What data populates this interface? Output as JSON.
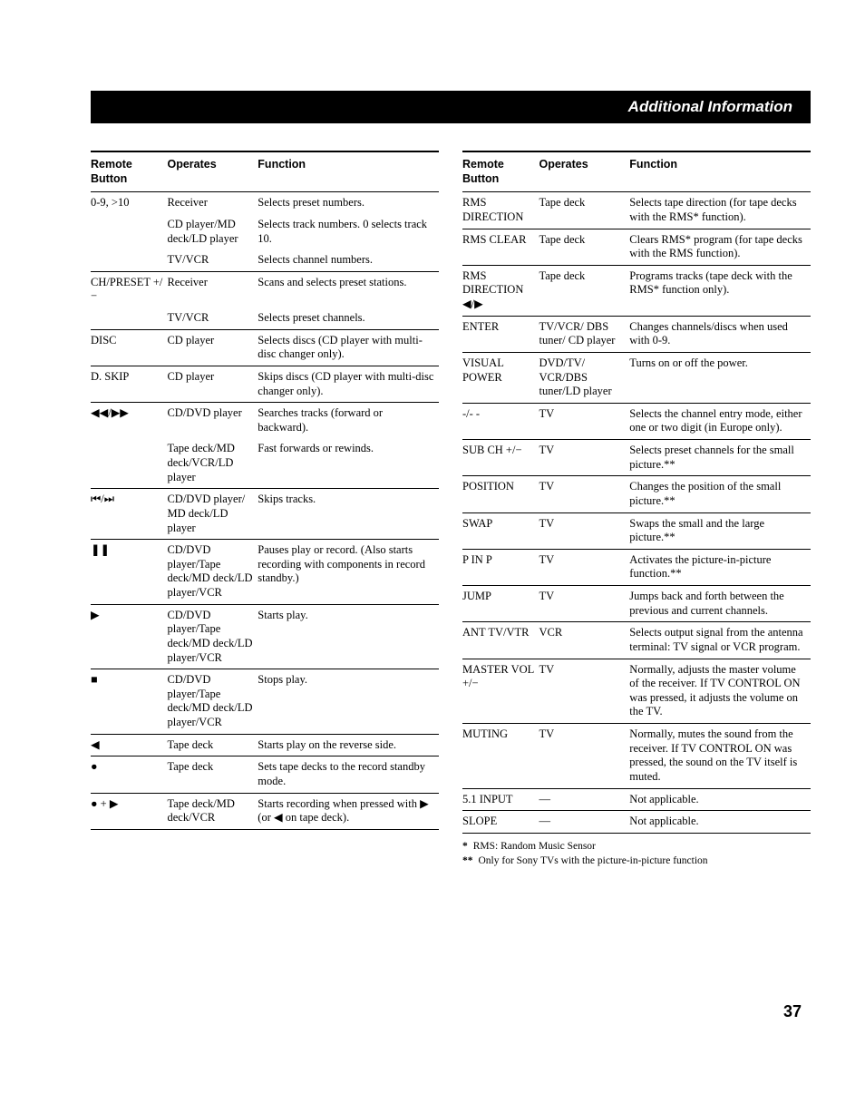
{
  "header_title": "Additional Information",
  "page_number": "37",
  "table_headers": {
    "button": "Remote\nButton",
    "operates": "Operates",
    "function": "Function"
  },
  "left_rows": [
    {
      "g": true,
      "button": "0-9, >10",
      "operates": "Receiver",
      "function": "Selects preset numbers."
    },
    {
      "g": false,
      "button": "",
      "operates": "CD player/MD deck/LD player",
      "function": "Selects track numbers. 0 selects track 10."
    },
    {
      "g": false,
      "button": "",
      "operates": "TV/VCR",
      "function": "Selects channel numbers."
    },
    {
      "g": true,
      "button": "CH/PRESET +/−",
      "operates": "Receiver",
      "function": "Scans and selects preset stations."
    },
    {
      "g": false,
      "button": "",
      "operates": "TV/VCR",
      "function": "Selects preset channels."
    },
    {
      "g": true,
      "button": "DISC",
      "operates": "CD player",
      "function": "Selects discs (CD player with multi-disc changer only)."
    },
    {
      "g": true,
      "button": "D. SKIP",
      "operates": "CD player",
      "function": "Skips discs (CD player with multi-disc changer only)."
    },
    {
      "g": true,
      "button": "◀◀/▶▶",
      "operates": "CD/DVD player",
      "function": "Searches tracks (forward or backward)."
    },
    {
      "g": false,
      "button": "",
      "operates": "Tape deck/MD deck/VCR/LD player",
      "function": "Fast forwards or rewinds."
    },
    {
      "g": true,
      "button": "⏮/⏭",
      "operates": "CD/DVD player/ MD deck/LD player",
      "function": "Skips tracks."
    },
    {
      "g": true,
      "button": "❚❚",
      "operates": "CD/DVD player/Tape deck/MD deck/LD player/VCR",
      "function": "Pauses play or record. (Also starts recording with components in record standby.)"
    },
    {
      "g": true,
      "button": "▶",
      "operates": "CD/DVD player/Tape deck/MD deck/LD player/VCR",
      "function": "Starts play."
    },
    {
      "g": true,
      "button": "■",
      "operates": "CD/DVD player/Tape deck/MD deck/LD player/VCR",
      "function": "Stops play."
    },
    {
      "g": true,
      "button": "◀",
      "operates": "Tape deck",
      "function": "Starts play on the reverse side."
    },
    {
      "g": true,
      "button": "●",
      "operates": "Tape deck",
      "function": "Sets tape decks to the record standby mode."
    },
    {
      "g": true,
      "button": "● + ▶",
      "operates": "Tape deck/MD deck/VCR",
      "function": "Starts recording when pressed with ▶ (or ◀ on tape deck)."
    }
  ],
  "right_rows": [
    {
      "g": true,
      "button": "RMS DIRECTION",
      "operates": "Tape deck",
      "function": "Selects tape direction (for tape decks with the RMS* function)."
    },
    {
      "g": true,
      "button": "RMS CLEAR",
      "operates": "Tape deck",
      "function": "Clears RMS* program (for tape decks with the RMS function)."
    },
    {
      "g": true,
      "button": "RMS DIRECTION ◀/▶",
      "operates": "Tape deck",
      "function": "Programs tracks (tape deck with the RMS* function only)."
    },
    {
      "g": true,
      "button": "ENTER",
      "operates": "TV/VCR/ DBS tuner/ CD player",
      "function": "Changes channels/discs when used with 0-9."
    },
    {
      "g": true,
      "button": "VISUAL POWER",
      "operates": "DVD/TV/ VCR/DBS tuner/LD player",
      "function": "Turns on or off the power."
    },
    {
      "g": true,
      "button": "-/- -",
      "operates": "TV",
      "function": "Selects the channel entry mode, either one or two digit (in Europe only)."
    },
    {
      "g": true,
      "button": "SUB CH +/−",
      "operates": "TV",
      "function": "Selects preset channels for the small picture.**"
    },
    {
      "g": true,
      "button": "POSITION",
      "operates": "TV",
      "function": "Changes the position of the small picture.**"
    },
    {
      "g": true,
      "button": "SWAP",
      "operates": "TV",
      "function": "Swaps the small and the large picture.**"
    },
    {
      "g": true,
      "button": "P IN P",
      "operates": "TV",
      "function": "Activates the picture-in-picture function.**"
    },
    {
      "g": true,
      "button": "JUMP",
      "operates": "TV",
      "function": "Jumps back and forth between the previous and current channels."
    },
    {
      "g": true,
      "button": "ANT TV/VTR",
      "operates": "VCR",
      "function": "Selects output signal from the antenna terminal: TV signal or VCR program."
    },
    {
      "g": true,
      "button": "MASTER VOL +/−",
      "operates": "TV",
      "function": "Normally, adjusts the master volume of the receiver. If TV CONTROL ON was pressed, it adjusts the volume on the TV."
    },
    {
      "g": true,
      "button": "MUTING",
      "operates": "TV",
      "function": "Normally, mutes the sound from the receiver. If TV CONTROL ON was pressed, the sound on the TV itself is muted."
    },
    {
      "g": true,
      "button": "5.1 INPUT",
      "operates": "—",
      "function": "Not applicable."
    },
    {
      "g": true,
      "button": "SLOPE",
      "operates": "—",
      "function": "Not applicable."
    }
  ],
  "footnote1": "RMS: Random Music Sensor",
  "footnote2": "Only for Sony TVs with the picture-in-picture function"
}
